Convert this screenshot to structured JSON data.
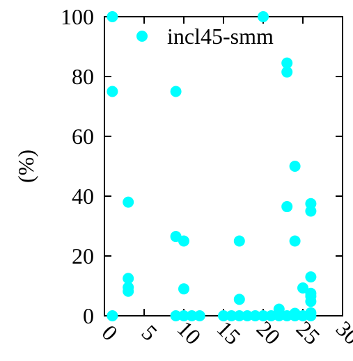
{
  "chart_data": {
    "type": "scatter",
    "xlabel": "",
    "ylabel": "(%)",
    "xlim": [
      0,
      30
    ],
    "ylim": [
      0,
      100
    ],
    "xticks": [
      "0",
      "5",
      "10",
      "15",
      "20",
      "25",
      "30"
    ],
    "yticks": [
      "0",
      "20",
      "40",
      "60",
      "80",
      "100"
    ],
    "legend_position": "top-right",
    "grid": false,
    "series": [
      {
        "name": "incl45-smm",
        "color": "#00ffff",
        "points": [
          [
            1,
            100
          ],
          [
            1,
            75
          ],
          [
            1,
            0
          ],
          [
            3,
            38
          ],
          [
            3,
            12.5
          ],
          [
            3,
            9.5
          ],
          [
            3,
            8.2
          ],
          [
            9,
            75
          ],
          [
            9,
            26.5
          ],
          [
            9,
            0
          ],
          [
            10,
            25
          ],
          [
            10,
            9
          ],
          [
            10,
            0
          ],
          [
            11,
            0
          ],
          [
            12,
            0
          ],
          [
            15,
            0
          ],
          [
            16,
            0
          ],
          [
            17,
            25
          ],
          [
            17,
            5.5
          ],
          [
            17,
            0
          ],
          [
            18,
            0
          ],
          [
            19,
            0
          ],
          [
            20,
            100
          ],
          [
            20,
            0
          ],
          [
            21,
            0
          ],
          [
            22,
            2.2
          ],
          [
            22,
            0
          ],
          [
            23,
            84.5
          ],
          [
            23,
            81.5
          ],
          [
            23,
            36.5
          ],
          [
            23,
            0
          ],
          [
            24,
            50
          ],
          [
            24,
            25
          ],
          [
            24,
            0.8
          ],
          [
            24,
            0
          ],
          [
            25,
            9.3
          ],
          [
            25,
            0
          ],
          [
            26,
            37.5
          ],
          [
            26,
            35
          ],
          [
            26,
            13
          ],
          [
            26,
            7.5
          ],
          [
            26,
            6.5
          ],
          [
            26,
            4.8
          ],
          [
            26,
            1
          ],
          [
            26,
            0
          ]
        ]
      }
    ]
  }
}
